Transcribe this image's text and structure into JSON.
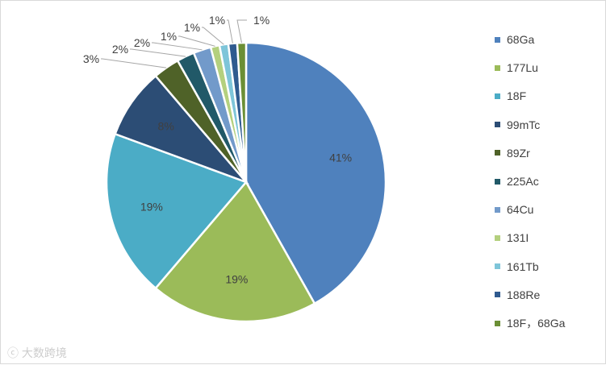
{
  "chart_data": {
    "type": "pie",
    "title": "",
    "categories": [
      "68Ga",
      "177Lu",
      "18F",
      "99mTc",
      "89Zr",
      "225Ac",
      "64Cu",
      "131I",
      "161Tb",
      "188Re",
      "18F，68Ga"
    ],
    "values": [
      41,
      19,
      19,
      8,
      3,
      2,
      2,
      1,
      1,
      1,
      1
    ],
    "data_labels": [
      "41%",
      "19%",
      "19%",
      "8%",
      "3%",
      "2%",
      "2%",
      "1%",
      "1%",
      "1%",
      "1%"
    ],
    "colors": [
      "#4f81bd",
      "#9bbb59",
      "#4bacc6",
      "#2c4d75",
      "#4f6228",
      "#215968",
      "#729aca",
      "#b4d07e",
      "#7ec5d9",
      "#2f5a8f",
      "#6b8f35"
    ],
    "legend_position": "right",
    "start_angle_deg": 0,
    "direction": "clockwise"
  },
  "watermark": {
    "text": "大数跨境",
    "icon": "cc-logo-icon"
  }
}
